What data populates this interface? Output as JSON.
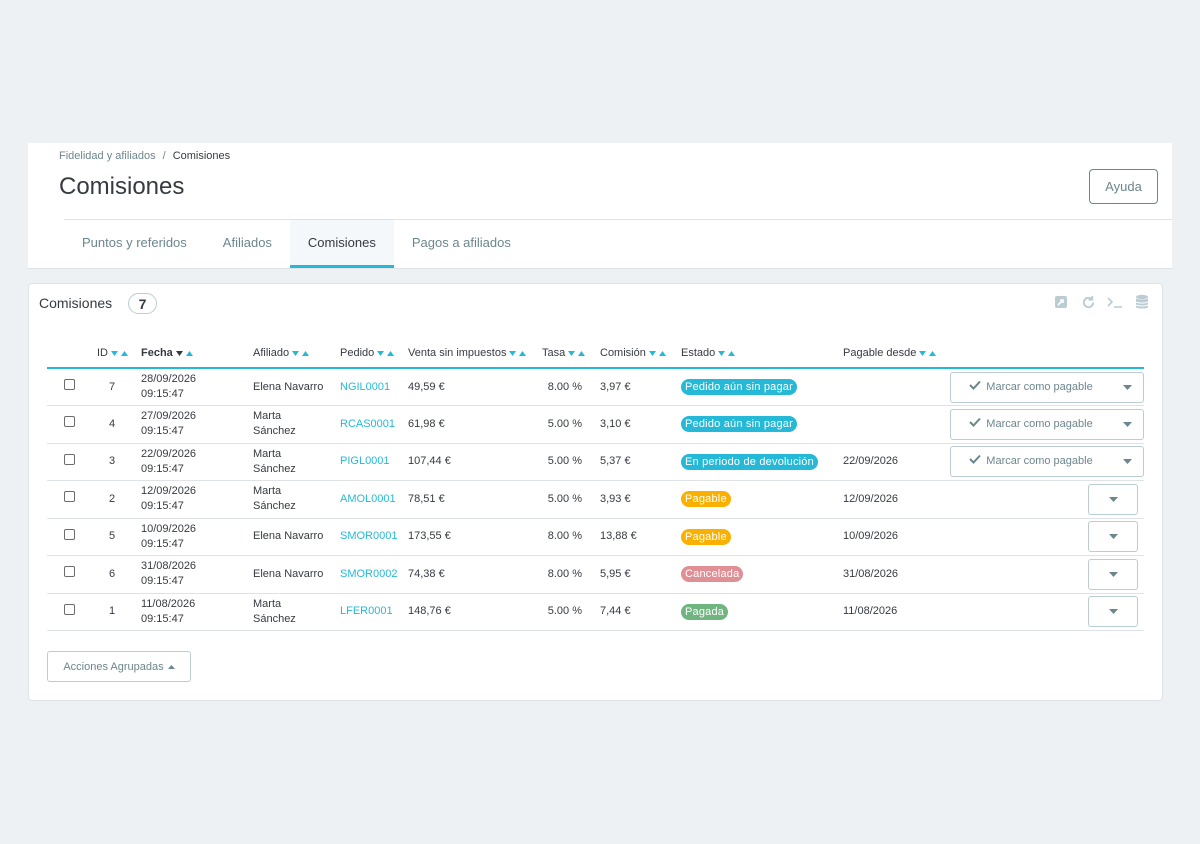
{
  "breadcrumb": {
    "parent": "Fidelidad y afiliados",
    "separator": "/",
    "current": "Comisiones"
  },
  "page_title": "Comisiones",
  "help_label": "Ayuda",
  "tabs": [
    {
      "label": "Puntos y referidos"
    },
    {
      "label": "Afiliados"
    },
    {
      "label": "Comisiones"
    },
    {
      "label": "Pagos a afiliados"
    }
  ],
  "panel": {
    "title": "Comisiones",
    "count": "7"
  },
  "columns": {
    "id": "ID",
    "fecha": "Fecha",
    "afiliado": "Afiliado",
    "pedido": "Pedido",
    "venta": "Venta sin impuestos",
    "tasa": "Tasa",
    "comision": "Comisión",
    "estado": "Estado",
    "pagable": "Pagable desde"
  },
  "action_label": "Marcar como pagable",
  "bulk_label": "Acciones Agrupadas",
  "colors": {
    "accent": "#25b9d7",
    "orange": "#fab000",
    "red": "#e08f95",
    "green": "#70b580"
  },
  "rows": [
    {
      "id": "7",
      "date": "28/09/2026",
      "time": "09:15:47",
      "aff1": "Elena Navarro",
      "aff2": "",
      "order": "NGIL0001",
      "sale": "49,59 €",
      "rate": "8.00 %",
      "commission": "3,97 €",
      "status": "Pedido aún sin pagar",
      "status_color": "blue",
      "payable": "",
      "action": "full"
    },
    {
      "id": "4",
      "date": "27/09/2026",
      "time": "09:15:47",
      "aff1": "Marta",
      "aff2": "Sánchez",
      "order": "RCAS0001",
      "sale": "61,98 €",
      "rate": "5.00 %",
      "commission": "3,10 €",
      "status": "Pedido aún sin pagar",
      "status_color": "blue",
      "payable": "",
      "action": "full"
    },
    {
      "id": "3",
      "date": "22/09/2026",
      "time": "09:15:47",
      "aff1": "Marta",
      "aff2": "Sánchez",
      "order": "PIGL0001",
      "sale": "107,44 €",
      "rate": "5.00 %",
      "commission": "5,37 €",
      "status": "En periodo de devolución",
      "status_color": "blue",
      "payable": "22/09/2026",
      "action": "full"
    },
    {
      "id": "2",
      "date": "12/09/2026",
      "time": "09:15:47",
      "aff1": "Marta",
      "aff2": "Sánchez",
      "order": "AMOL0001",
      "sale": "78,51 €",
      "rate": "5.00 %",
      "commission": "3,93 €",
      "status": "Pagable",
      "status_color": "orange",
      "payable": "12/09/2026",
      "action": "caret"
    },
    {
      "id": "5",
      "date": "10/09/2026",
      "time": "09:15:47",
      "aff1": "Elena Navarro",
      "aff2": "",
      "order": "SMOR0001",
      "sale": "173,55 €",
      "rate": "8.00 %",
      "commission": "13,88 €",
      "status": "Pagable",
      "status_color": "orange",
      "payable": "10/09/2026",
      "action": "caret"
    },
    {
      "id": "6",
      "date": "31/08/2026",
      "time": "09:15:47",
      "aff1": "Elena Navarro",
      "aff2": "",
      "order": "SMOR0002",
      "sale": "74,38 €",
      "rate": "8.00 %",
      "commission": "5,95 €",
      "status": "Cancelada",
      "status_color": "red",
      "payable": "31/08/2026",
      "action": "caret"
    },
    {
      "id": "1",
      "date": "11/08/2026",
      "time": "09:15:47",
      "aff1": "Marta",
      "aff2": "Sánchez",
      "order": "LFER0001",
      "sale": "148,76 €",
      "rate": "5.00 %",
      "commission": "7,44 €",
      "status": "Pagada",
      "status_color": "green",
      "payable": "11/08/2026",
      "action": "caret"
    }
  ]
}
